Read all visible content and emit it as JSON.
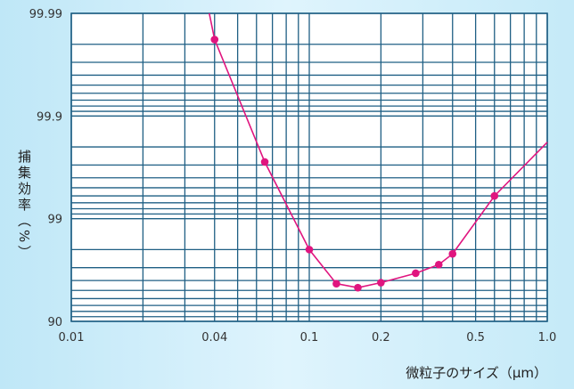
{
  "chart_data": {
    "type": "line",
    "title": "",
    "xlabel": "微粒子のサイズ（μm）",
    "ylabel": "捕集効率（%）",
    "x_scale": "log",
    "y_scale": "probit",
    "xlim": [
      0.01,
      1.0
    ],
    "ylim": [
      90,
      99.99
    ],
    "x_ticks": [
      {
        "value": 0.01,
        "label": "0.01"
      },
      {
        "value": 0.04,
        "label": "0.04"
      },
      {
        "value": 0.1,
        "label": "0.1"
      },
      {
        "value": 0.2,
        "label": "0.2"
      },
      {
        "value": 0.5,
        "label": "0.5"
      },
      {
        "value": 1.0,
        "label": "1.0"
      }
    ],
    "y_ticks": [
      {
        "value": 90,
        "label": "90"
      },
      {
        "value": 99,
        "label": "99"
      },
      {
        "value": 99.9,
        "label": "99.9"
      },
      {
        "value": 99.99,
        "label": "99.99"
      }
    ],
    "grid": true,
    "series": [
      {
        "color": "#e0157f",
        "points": [
          {
            "x": 0.04,
            "y": 99.982
          },
          {
            "x": 0.065,
            "y": 99.72
          },
          {
            "x": 0.1,
            "y": 98.0
          },
          {
            "x": 0.13,
            "y": 95.7
          },
          {
            "x": 0.16,
            "y": 95.3
          },
          {
            "x": 0.2,
            "y": 95.8
          },
          {
            "x": 0.28,
            "y": 96.6
          },
          {
            "x": 0.35,
            "y": 97.2
          },
          {
            "x": 0.4,
            "y": 97.8
          },
          {
            "x": 0.6,
            "y": 99.4
          }
        ],
        "line_start": {
          "x": 0.038,
          "y": 99.99
        },
        "line_end": {
          "x": 1.0,
          "y": 99.82
        }
      }
    ]
  }
}
